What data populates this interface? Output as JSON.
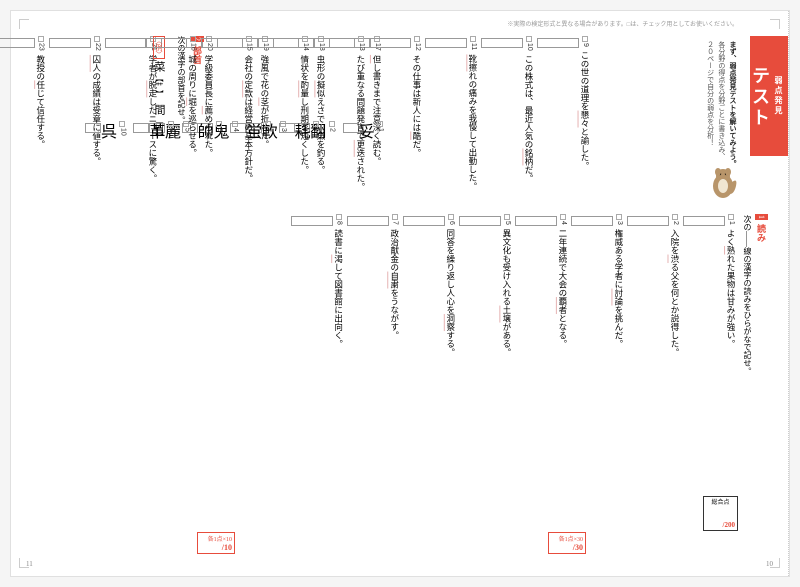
{
  "tab": {
    "small": "弱点発見",
    "big": "テスト"
  },
  "intro": {
    "l1": "まず、弱点発見テストを解いてみよう。",
    "l2": "各分野の得点を分野ごとに書き込み、",
    "l3": "２０ページで自分の弱点を分析！"
  },
  "headerNote": "※実際の検定形式と異なる場合があります。□は、チェック用としてお使いください。",
  "section1": {
    "num": "1",
    "title": "読み",
    "instruction": "次の――線の漢字の読みをひらがなで記せ。"
  },
  "q1": [
    {
      "n": "1",
      "pre": "よく",
      "u": "熟",
      "post": "れた果物は甘みが強い。"
    },
    {
      "n": "2",
      "pre": "入院を",
      "u": "渋",
      "post": "る父を何とか説得した。"
    },
    {
      "n": "3",
      "pre": "権威ある学者に",
      "u": "討論",
      "post": "を挑んだ。"
    },
    {
      "n": "4",
      "pre": "二年連続で大会の",
      "u": "覇者",
      "post": "となる。"
    },
    {
      "n": "5",
      "pre": "異文化も受け入れる",
      "u": "土壌",
      "post": "がある。"
    },
    {
      "n": "6",
      "pre": "同答を繰り返し人心を",
      "u": "洞察",
      "post": "する。"
    },
    {
      "n": "7",
      "pre": "政治献金の",
      "u": "自粛",
      "post": "をうながす。"
    },
    {
      "n": "8",
      "pre": "読書に",
      "u": "渇",
      "post": "して図書館に出向く。"
    }
  ],
  "q1b": [
    {
      "n": "9",
      "pre": "この世の道理を",
      "u": "懇々",
      "post": "と諭した。"
    },
    {
      "n": "10",
      "pre": "この株式は、最近人気の",
      "u": "銘柄",
      "post": "だ。"
    },
    {
      "n": "11",
      "pre": "",
      "u": "靴擦",
      "post": "れの痛みを我慢して出勤した。"
    },
    {
      "n": "12",
      "pre": "その仕事は新人には",
      "u": "酷",
      "post": "だ。"
    },
    {
      "n": "13",
      "pre": "たび重なる問題発言で",
      "u": "更迭",
      "post": "された。"
    },
    {
      "n": "14",
      "pre": "情状を",
      "u": "酌量",
      "post": "し刑期を短くした。"
    },
    {
      "n": "15",
      "pre": "会社の",
      "u": "定款",
      "post": "は経営の基本方針だ。"
    },
    {
      "n": "16",
      "pre": "城の周りに",
      "u": "堀",
      "post": "を巡らせる。"
    }
  ],
  "q2": [
    {
      "n": "17",
      "pre": "",
      "u": "但",
      "post": "し書きまで注意深く読む。"
    },
    {
      "n": "18",
      "pre": "虫形の",
      "u": "擬似",
      "post": "えさで川魚を釣る。"
    },
    {
      "n": "19",
      "pre": "強風で花の",
      "u": "茎",
      "post": "が折れた。"
    },
    {
      "n": "20",
      "pre": "学級委員長に",
      "u": "薦",
      "post": "められた。"
    },
    {
      "n": "21",
      "pre": "学者が",
      "u": "脱走",
      "post": "したニュースに驚く。"
    },
    {
      "n": "22",
      "pre": "",
      "u": "囚人",
      "post": "の成績は受章に値する。"
    },
    {
      "n": "23",
      "pre": "教授の",
      "u": "任",
      "post": "じて信任する。"
    },
    {
      "n": "24",
      "pre": "十分に",
      "u": "堪",
      "post": "えうる力量だ。"
    },
    {
      "n": "25",
      "pre": "選ばれた貴族だけが",
      "u": "宮廷",
      "post": "に入る。"
    },
    {
      "n": "26",
      "pre": "",
      "u": "艦長",
      "post": "は川の浄作用で生息できる。"
    },
    {
      "n": "27",
      "pre": "浦で",
      "u": "魚釣",
      "post": "りを楽しむ。"
    },
    {
      "n": "28",
      "pre": "",
      "u": "研磨",
      "post": "した大理石を玄関に敷いた。"
    },
    {
      "n": "29",
      "pre": "外食ばかりでは",
      "u": "栄養",
      "post": "が偏る。"
    },
    {
      "n": "30",
      "pre": "",
      "u": "晩酌",
      "post": "のつまみに刺身が出す。"
    }
  ],
  "score1": {
    "label": "各1点×30",
    "denom": "/30"
  },
  "score2": {
    "label": "各1点×10",
    "denom": "/10"
  },
  "total": {
    "label": "総合点",
    "denom": "/200"
  },
  "section2": {
    "num": "2",
    "title": "部首",
    "instruction": "次の漢字の部首を記せ。"
  },
  "example": {
    "label": "〈例〉",
    "k1": "菜",
    "a1": "【艹】",
    "k2": "間",
    "a2": "【門】"
  },
  "radicals": [
    {
      "n": "1",
      "k": "妥"
    },
    {
      "n": "2",
      "k": "翻"
    },
    {
      "n": "3",
      "k": "軟"
    },
    {
      "n": "4",
      "k": "鬼"
    },
    {
      "n": "5",
      "k": "麗"
    },
    {
      "n": "6",
      "k": "耗"
    },
    {
      "n": "7",
      "k": "蛍"
    },
    {
      "n": "8",
      "k": "帥"
    },
    {
      "n": "9",
      "k": "革"
    },
    {
      "n": "10",
      "k": "呉"
    }
  ],
  "pageLeft": "11",
  "pageRight": "10"
}
